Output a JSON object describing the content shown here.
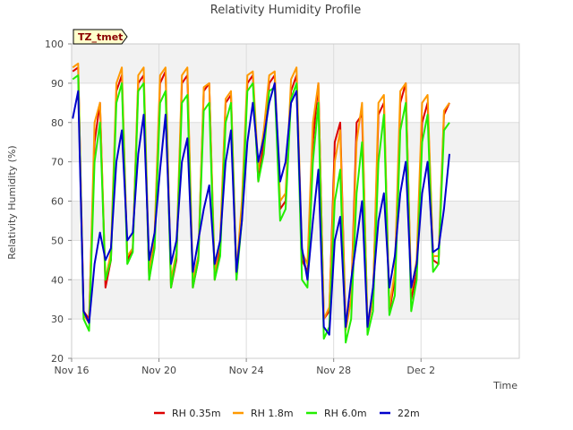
{
  "chart_data": {
    "type": "line",
    "title": "Relativity Humidity Profile",
    "xlabel": "Time",
    "ylabel": "Relativity Humidity (%)",
    "badge": "TZ_tmet",
    "ylim": [
      20,
      100
    ],
    "yticks": [
      20,
      30,
      40,
      50,
      60,
      70,
      80,
      90,
      100
    ],
    "xlim": [
      0,
      20.5
    ],
    "xticks": [
      {
        "value": 0,
        "label": "Nov 16"
      },
      {
        "value": 4,
        "label": "Nov 20"
      },
      {
        "value": 8,
        "label": "Nov 24"
      },
      {
        "value": 12,
        "label": "Nov 28"
      },
      {
        "value": 16,
        "label": "Dec 2"
      }
    ],
    "grid": true,
    "legend_position": "bottom",
    "series": [
      {
        "name": "RH 0.35m",
        "color": "#dd0000",
        "x": [
          0.05,
          0.3,
          0.55,
          0.8,
          1.05,
          1.3,
          1.55,
          1.8,
          2.05,
          2.3,
          2.55,
          2.8,
          3.05,
          3.3,
          3.55,
          3.8,
          4.05,
          4.3,
          4.55,
          4.8,
          5.05,
          5.3,
          5.55,
          5.8,
          6.05,
          6.3,
          6.55,
          6.8,
          7.05,
          7.3,
          7.55,
          7.8,
          8.05,
          8.3,
          8.55,
          8.8,
          9.05,
          9.3,
          9.55,
          9.8,
          10.05,
          10.3,
          10.55,
          10.8,
          11.05,
          11.3,
          11.55,
          11.8,
          12.05,
          12.3,
          12.55,
          12.8,
          13.05,
          13.3,
          13.55,
          13.8,
          14.05,
          14.3,
          14.55,
          14.8,
          15.05,
          15.3,
          15.55,
          15.8,
          16.05,
          16.3,
          16.55,
          16.8,
          17.05,
          17.3
        ],
        "y": [
          93,
          94,
          32,
          30,
          75,
          85,
          38,
          45,
          88,
          92,
          45,
          48,
          90,
          92,
          40,
          50,
          90,
          93,
          38,
          45,
          90,
          92,
          38,
          45,
          88,
          90,
          40,
          48,
          85,
          87,
          40,
          58,
          90,
          92,
          65,
          75,
          90,
          92,
          58,
          60,
          88,
          92,
          45,
          42,
          75,
          90,
          30,
          32,
          75,
          80,
          28,
          35,
          80,
          82,
          28,
          35,
          82,
          85,
          32,
          40,
          85,
          90,
          35,
          42,
          80,
          85,
          45,
          44,
          82,
          85
        ]
      },
      {
        "name": "RH 1.8m",
        "color": "#ff9900",
        "x": [
          0.05,
          0.3,
          0.55,
          0.8,
          1.05,
          1.3,
          1.55,
          1.8,
          2.05,
          2.3,
          2.55,
          2.8,
          3.05,
          3.3,
          3.55,
          3.8,
          4.05,
          4.3,
          4.55,
          4.8,
          5.05,
          5.3,
          5.55,
          5.8,
          6.05,
          6.3,
          6.55,
          6.8,
          7.05,
          7.3,
          7.55,
          7.8,
          8.05,
          8.3,
          8.55,
          8.8,
          9.05,
          9.3,
          9.55,
          9.8,
          10.05,
          10.3,
          10.55,
          10.8,
          11.05,
          11.3,
          11.55,
          11.8,
          12.05,
          12.3,
          12.55,
          12.8,
          13.05,
          13.3,
          13.55,
          13.8,
          14.05,
          14.3,
          14.55,
          14.8,
          15.05,
          15.3,
          15.55,
          15.8,
          16.05,
          16.3,
          16.55,
          16.8,
          17.05,
          17.3
        ],
        "y": [
          94,
          95,
          31,
          29,
          80,
          85,
          40,
          47,
          90,
          94,
          46,
          48,
          92,
          94,
          42,
          52,
          92,
          94,
          40,
          47,
          92,
          94,
          40,
          46,
          89,
          90,
          42,
          50,
          86,
          88,
          42,
          60,
          92,
          93,
          68,
          78,
          92,
          93,
          60,
          62,
          91,
          94,
          47,
          44,
          80,
          90,
          30,
          33,
          70,
          78,
          27,
          35,
          75,
          85,
          28,
          35,
          85,
          87,
          33,
          42,
          88,
          90,
          37,
          45,
          85,
          87,
          46,
          46,
          83,
          85
        ]
      },
      {
        "name": "RH 6.0m",
        "color": "#22ee00",
        "x": [
          0.05,
          0.3,
          0.55,
          0.8,
          1.05,
          1.3,
          1.55,
          1.8,
          2.05,
          2.3,
          2.55,
          2.8,
          3.05,
          3.3,
          3.55,
          3.8,
          4.05,
          4.3,
          4.55,
          4.8,
          5.05,
          5.3,
          5.55,
          5.8,
          6.05,
          6.3,
          6.55,
          6.8,
          7.05,
          7.3,
          7.55,
          7.8,
          8.05,
          8.3,
          8.55,
          8.8,
          9.05,
          9.3,
          9.55,
          9.8,
          10.05,
          10.3,
          10.55,
          10.8,
          11.05,
          11.3,
          11.55,
          11.8,
          12.05,
          12.3,
          12.55,
          12.8,
          13.05,
          13.3,
          13.55,
          13.8,
          14.05,
          14.3,
          14.55,
          14.8,
          15.05,
          15.3,
          15.55,
          15.8,
          16.05,
          16.3,
          16.55,
          16.8,
          17.05,
          17.3
        ],
        "y": [
          91,
          92,
          30,
          27,
          70,
          80,
          40,
          45,
          85,
          90,
          44,
          47,
          88,
          90,
          40,
          48,
          85,
          88,
          38,
          46,
          85,
          87,
          38,
          45,
          83,
          85,
          40,
          46,
          80,
          85,
          40,
          55,
          88,
          90,
          65,
          72,
          88,
          89,
          55,
          58,
          86,
          90,
          40,
          38,
          70,
          85,
          25,
          28,
          60,
          68,
          24,
          30,
          62,
          75,
          26,
          32,
          70,
          82,
          31,
          36,
          78,
          85,
          32,
          40,
          75,
          82,
          42,
          44,
          78,
          80
        ]
      },
      {
        "name": "22m",
        "color": "#0000cc",
        "x": [
          0.05,
          0.3,
          0.55,
          0.8,
          1.05,
          1.3,
          1.55,
          1.8,
          2.05,
          2.3,
          2.55,
          2.8,
          3.05,
          3.3,
          3.55,
          3.8,
          4.05,
          4.3,
          4.55,
          4.8,
          5.05,
          5.3,
          5.55,
          5.8,
          6.05,
          6.3,
          6.55,
          6.8,
          7.05,
          7.3,
          7.55,
          7.8,
          8.05,
          8.3,
          8.55,
          8.8,
          9.05,
          9.3,
          9.55,
          9.8,
          10.05,
          10.3,
          10.55,
          10.8,
          11.05,
          11.3,
          11.55,
          11.8,
          12.05,
          12.3,
          12.55,
          12.8,
          13.05,
          13.3,
          13.55,
          13.8,
          14.05,
          14.3,
          14.55,
          14.8,
          15.05,
          15.3,
          15.55,
          15.8,
          16.05,
          16.3,
          16.55,
          16.8,
          17.05,
          17.3
        ],
        "y": [
          81,
          88,
          32,
          29,
          44,
          52,
          45,
          48,
          70,
          78,
          50,
          52,
          72,
          82,
          45,
          52,
          68,
          82,
          44,
          50,
          70,
          76,
          42,
          50,
          58,
          64,
          44,
          50,
          70,
          78,
          42,
          55,
          75,
          85,
          70,
          76,
          85,
          90,
          65,
          70,
          85,
          88,
          48,
          40,
          55,
          68,
          28,
          26,
          50,
          56,
          28,
          40,
          50,
          60,
          28,
          38,
          55,
          62,
          38,
          46,
          62,
          70,
          38,
          44,
          62,
          70,
          47,
          48,
          58,
          72
        ]
      }
    ]
  }
}
